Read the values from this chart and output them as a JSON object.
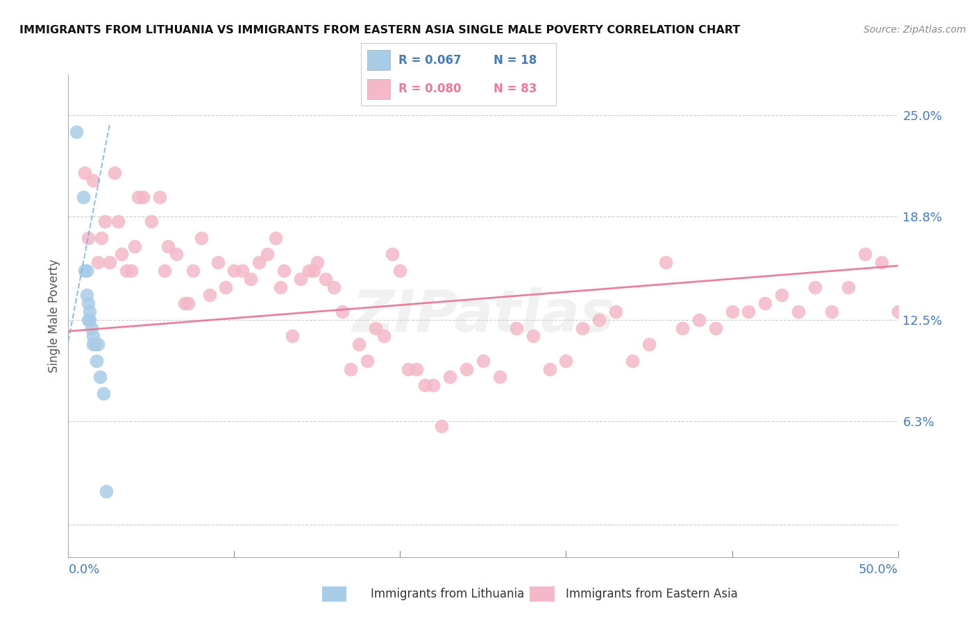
{
  "title": "IMMIGRANTS FROM LITHUANIA VS IMMIGRANTS FROM EASTERN ASIA SINGLE MALE POVERTY CORRELATION CHART",
  "source": "Source: ZipAtlas.com",
  "ylabel": "Single Male Poverty",
  "y_ticks": [
    0.0,
    0.063,
    0.125,
    0.188,
    0.25
  ],
  "y_tick_labels": [
    "",
    "6.3%",
    "12.5%",
    "18.8%",
    "25.0%"
  ],
  "xlim": [
    0.0,
    0.5
  ],
  "ylim": [
    -0.02,
    0.275
  ],
  "legend_r1": "R = 0.067",
  "legend_n1": "N = 18",
  "legend_r2": "R = 0.080",
  "legend_n2": "N = 83",
  "legend_label1": "Immigrants from Lithuania",
  "legend_label2": "Immigrants from Eastern Asia",
  "color_blue": "#a8cce8",
  "color_pink": "#f4b8c8",
  "color_blue_trend": "#7ab0d8",
  "color_pink_trend": "#e87a96",
  "color_axis_label": "#4a7ab5",
  "color_grid": "#cccccc",
  "watermark": "ZIPatlas",
  "lith_x": [
    0.005,
    0.009,
    0.01,
    0.011,
    0.011,
    0.012,
    0.012,
    0.013,
    0.013,
    0.014,
    0.015,
    0.015,
    0.016,
    0.017,
    0.018,
    0.019,
    0.021,
    0.023
  ],
  "lith_y": [
    0.24,
    0.2,
    0.155,
    0.155,
    0.14,
    0.135,
    0.125,
    0.13,
    0.125,
    0.12,
    0.115,
    0.11,
    0.11,
    0.1,
    0.11,
    0.09,
    0.08,
    0.02
  ],
  "ea_x": [
    0.01,
    0.012,
    0.015,
    0.018,
    0.02,
    0.022,
    0.025,
    0.028,
    0.03,
    0.032,
    0.035,
    0.038,
    0.04,
    0.042,
    0.045,
    0.05,
    0.055,
    0.058,
    0.06,
    0.065,
    0.07,
    0.072,
    0.075,
    0.08,
    0.085,
    0.09,
    0.095,
    0.1,
    0.105,
    0.11,
    0.115,
    0.12,
    0.125,
    0.128,
    0.13,
    0.135,
    0.14,
    0.145,
    0.148,
    0.15,
    0.155,
    0.16,
    0.165,
    0.17,
    0.175,
    0.18,
    0.185,
    0.19,
    0.195,
    0.2,
    0.205,
    0.21,
    0.215,
    0.22,
    0.225,
    0.23,
    0.24,
    0.25,
    0.26,
    0.27,
    0.28,
    0.29,
    0.3,
    0.31,
    0.32,
    0.33,
    0.34,
    0.35,
    0.36,
    0.37,
    0.38,
    0.39,
    0.4,
    0.41,
    0.42,
    0.43,
    0.44,
    0.45,
    0.46,
    0.47,
    0.48,
    0.49,
    0.5
  ],
  "ea_y": [
    0.215,
    0.175,
    0.21,
    0.16,
    0.175,
    0.185,
    0.16,
    0.215,
    0.185,
    0.165,
    0.155,
    0.155,
    0.17,
    0.2,
    0.2,
    0.185,
    0.2,
    0.155,
    0.17,
    0.165,
    0.135,
    0.135,
    0.155,
    0.175,
    0.14,
    0.16,
    0.145,
    0.155,
    0.155,
    0.15,
    0.16,
    0.165,
    0.175,
    0.145,
    0.155,
    0.115,
    0.15,
    0.155,
    0.155,
    0.16,
    0.15,
    0.145,
    0.13,
    0.095,
    0.11,
    0.1,
    0.12,
    0.115,
    0.165,
    0.155,
    0.095,
    0.095,
    0.085,
    0.085,
    0.06,
    0.09,
    0.095,
    0.1,
    0.09,
    0.12,
    0.115,
    0.095,
    0.1,
    0.12,
    0.125,
    0.13,
    0.1,
    0.11,
    0.16,
    0.12,
    0.125,
    0.12,
    0.13,
    0.13,
    0.135,
    0.14,
    0.13,
    0.145,
    0.13,
    0.145,
    0.165,
    0.16,
    0.13
  ],
  "lith_trend_x": [
    0.0,
    0.025
  ],
  "lith_trend_y": [
    0.112,
    0.245
  ],
  "ea_trend_x": [
    0.0,
    0.5
  ],
  "ea_trend_y": [
    0.118,
    0.158
  ]
}
